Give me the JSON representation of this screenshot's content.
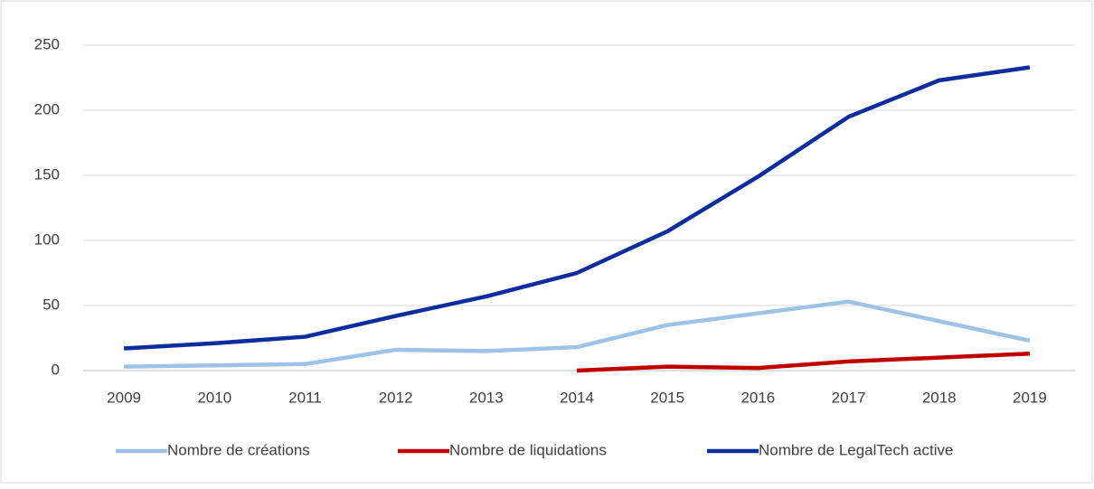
{
  "chart_data": {
    "type": "line",
    "categories": [
      "2009",
      "2010",
      "2011",
      "2012",
      "2013",
      "2014",
      "2015",
      "2016",
      "2017",
      "2018",
      "2019"
    ],
    "series": [
      {
        "name": "Nombre de créations",
        "color": "#9dc3e6",
        "values": [
          3,
          4,
          5,
          16,
          15,
          18,
          35,
          44,
          53,
          38,
          23
        ]
      },
      {
        "name": "Nombre de liquidations",
        "color": "#c00000",
        "values": [
          null,
          null,
          null,
          null,
          null,
          0,
          3,
          2,
          7,
          10,
          13
        ]
      },
      {
        "name": "Nombre de LegalTech active",
        "color": "#0d2c9e",
        "values": [
          17,
          21,
          26,
          42,
          57,
          75,
          107,
          149,
          195,
          223,
          233
        ]
      }
    ],
    "ylim": [
      0,
      250
    ],
    "yticks": [
      0,
      50,
      100,
      150,
      200,
      250
    ],
    "grid": true,
    "legend": "bottom"
  }
}
